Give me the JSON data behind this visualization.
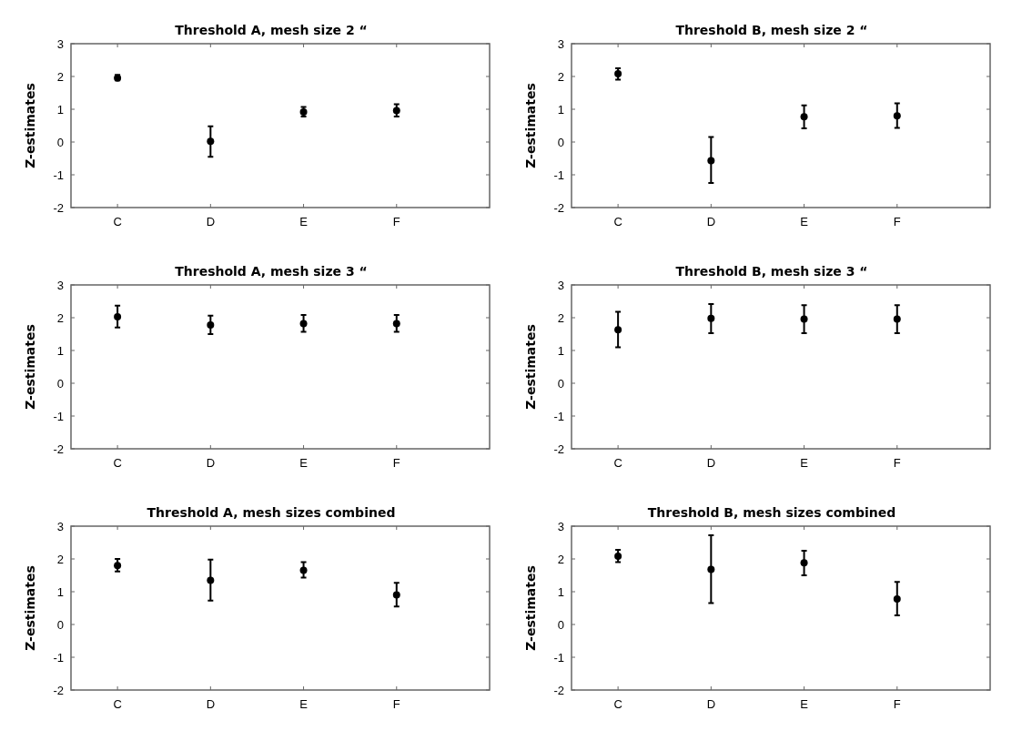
{
  "chart_data": [
    {
      "type": "scatter",
      "title": "Threshold A, mesh size 2 “",
      "ylabel": "Z-estimates",
      "categories": [
        "C",
        "D",
        "E",
        "F"
      ],
      "values": [
        1.95,
        0.02,
        0.92,
        0.96
      ],
      "errors": [
        [
          1.88,
          2.05
        ],
        [
          -0.45,
          0.48
        ],
        [
          0.78,
          1.07
        ],
        [
          0.78,
          1.15
        ]
      ],
      "color": "#000000",
      "marker": "circle",
      "ylim": [
        -2,
        3
      ],
      "yticks": [
        -2,
        -1,
        0,
        1,
        2,
        3
      ],
      "grid": false
    },
    {
      "type": "scatter",
      "title": "Threshold B, mesh size 2 “",
      "ylabel": "Z-estimates",
      "categories": [
        "C",
        "D",
        "E",
        "F"
      ],
      "values": [
        2.08,
        -0.57,
        0.77,
        0.8
      ],
      "errors": [
        [
          1.9,
          2.25
        ],
        [
          -1.25,
          0.15
        ],
        [
          0.42,
          1.12
        ],
        [
          0.43,
          1.18
        ]
      ],
      "color": "#000000",
      "marker": "circle",
      "ylim": [
        -2,
        3
      ],
      "yticks": [
        -2,
        -1,
        0,
        1,
        2,
        3
      ],
      "grid": false
    },
    {
      "type": "scatter",
      "title": "Threshold A, mesh size 3 “",
      "ylabel": "Z-estimates",
      "categories": [
        "C",
        "D",
        "E",
        "F"
      ],
      "values": [
        2.03,
        1.78,
        1.82,
        1.82
      ],
      "errors": [
        [
          1.7,
          2.37
        ],
        [
          1.5,
          2.06
        ],
        [
          1.57,
          2.08
        ],
        [
          1.57,
          2.08
        ]
      ],
      "color": "#000000",
      "marker": "circle",
      "ylim": [
        -2,
        3
      ],
      "yticks": [
        -2,
        -1,
        0,
        1,
        2,
        3
      ],
      "grid": false
    },
    {
      "type": "scatter",
      "title": "Threshold B, mesh size 3 “",
      "ylabel": "Z-estimates",
      "categories": [
        "C",
        "D",
        "E",
        "F"
      ],
      "values": [
        1.63,
        1.98,
        1.96,
        1.96
      ],
      "errors": [
        [
          1.1,
          2.18
        ],
        [
          1.53,
          2.42
        ],
        [
          1.53,
          2.38
        ],
        [
          1.53,
          2.38
        ]
      ],
      "color": "#000000",
      "marker": "circle",
      "ylim": [
        -2,
        3
      ],
      "yticks": [
        -2,
        -1,
        0,
        1,
        2,
        3
      ],
      "grid": false
    },
    {
      "type": "scatter",
      "title": "Threshold A, mesh sizes combined",
      "ylabel": "Z-estimates",
      "categories": [
        "C",
        "D",
        "E",
        "F"
      ],
      "values": [
        1.8,
        1.35,
        1.65,
        0.9
      ],
      "errors": [
        [
          1.62,
          2.0
        ],
        [
          0.73,
          1.98
        ],
        [
          1.43,
          1.9
        ],
        [
          0.55,
          1.27
        ]
      ],
      "color": "#000000",
      "marker": "circle",
      "ylim": [
        -2,
        3
      ],
      "yticks": [
        -2,
        -1,
        0,
        1,
        2,
        3
      ],
      "grid": false
    },
    {
      "type": "scatter",
      "title": "Threshold B, mesh sizes combined",
      "ylabel": "Z-estimates",
      "categories": [
        "C",
        "D",
        "E",
        "F"
      ],
      "values": [
        2.08,
        1.68,
        1.88,
        0.78
      ],
      "errors": [
        [
          1.9,
          2.28
        ],
        [
          0.65,
          2.72
        ],
        [
          1.5,
          2.25
        ],
        [
          0.28,
          1.3
        ]
      ],
      "color": "#000000",
      "marker": "circle",
      "ylim": [
        -2,
        3
      ],
      "yticks": [
        -2,
        -1,
        0,
        1,
        2,
        3
      ],
      "grid": false
    }
  ]
}
